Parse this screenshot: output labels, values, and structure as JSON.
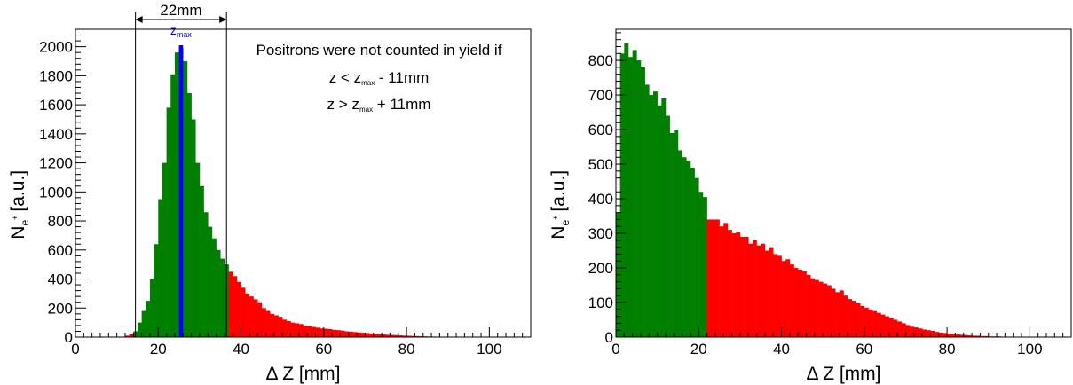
{
  "chart_data": [
    {
      "type": "bar",
      "panel": "left",
      "xlabel": "Δ Z [mm]",
      "ylabel_main": "N",
      "ylabel_sub": "e",
      "ylabel_sup": "+",
      "ylabel_unit": "[a.u.]",
      "xlim": [
        0,
        110
      ],
      "ylim": [
        0,
        2120
      ],
      "xticks": [
        0,
        20,
        40,
        60,
        80,
        100
      ],
      "yticks": [
        0,
        200,
        400,
        600,
        800,
        1000,
        1200,
        1400,
        1600,
        1800,
        2000
      ],
      "bin_width": 1,
      "bin_start": 0,
      "counted_range": [
        14.5,
        36.5
      ],
      "colors": {
        "counted": "#007f00",
        "not_counted": "#ff0000",
        "zmax": "#0000ff"
      },
      "values": [
        0,
        0,
        0,
        0,
        0,
        0,
        0,
        0,
        0,
        0,
        2,
        3,
        10,
        20,
        40,
        100,
        180,
        250,
        400,
        640,
        950,
        1200,
        1580,
        1810,
        1960,
        1990,
        1900,
        1680,
        1500,
        1200,
        1040,
        860,
        760,
        680,
        600,
        540,
        500,
        450,
        420,
        380,
        340,
        300,
        280,
        260,
        240,
        200,
        180,
        160,
        150,
        140,
        120,
        110,
        100,
        95,
        90,
        80,
        75,
        70,
        65,
        60,
        58,
        55,
        50,
        48,
        45,
        40,
        38,
        35,
        32,
        30,
        28,
        25,
        22,
        20,
        18,
        16,
        15,
        14,
        12,
        10,
        9,
        8,
        7,
        6,
        5,
        4,
        4,
        3,
        3,
        2,
        2,
        2,
        1,
        1,
        1,
        1,
        0,
        0,
        0,
        0,
        0,
        0,
        0,
        0,
        0,
        0,
        0,
        0,
        0,
        0
      ],
      "zmax": {
        "x": 25.5,
        "height": 2010,
        "label_main": "z",
        "label_sub": "max"
      },
      "width_arrow": {
        "from": 14.5,
        "to": 36.5,
        "label": "22mm"
      },
      "annotation": {
        "line1": "Positrons were not counted in yield if",
        "line2_pre": "z < z",
        "line2_sub": "max",
        "line2_post": " - 11mm",
        "line3_pre": "z > z",
        "line3_sub": "max",
        "line3_post": " + 11mm"
      }
    },
    {
      "type": "bar",
      "panel": "right",
      "xlabel": "Δ Z [mm]",
      "ylabel_main": "N",
      "ylabel_sub": "e",
      "ylabel_sup": "+",
      "ylabel_unit": "[a.u.]",
      "xlim": [
        0,
        110
      ],
      "ylim": [
        0,
        890
      ],
      "xticks": [
        0,
        20,
        40,
        60,
        80,
        100
      ],
      "yticks": [
        0,
        100,
        200,
        300,
        400,
        500,
        600,
        700,
        800
      ],
      "bin_width": 1,
      "bin_start": 0,
      "counted_range": [
        0,
        22
      ],
      "colors": {
        "counted": "#007f00",
        "not_counted": "#ff0000"
      },
      "values": [
        360,
        820,
        850,
        810,
        830,
        800,
        780,
        730,
        700,
        710,
        670,
        690,
        640,
        590,
        600,
        540,
        520,
        510,
        490,
        460,
        420,
        405,
        340,
        340,
        340,
        320,
        330,
        310,
        300,
        305,
        290,
        290,
        270,
        280,
        265,
        270,
        250,
        260,
        240,
        235,
        220,
        225,
        210,
        200,
        195,
        190,
        180,
        170,
        165,
        160,
        155,
        150,
        140,
        130,
        135,
        120,
        110,
        105,
        100,
        90,
        85,
        80,
        75,
        70,
        65,
        60,
        55,
        50,
        45,
        40,
        35,
        30,
        28,
        25,
        22,
        20,
        18,
        15,
        13,
        12,
        10,
        9,
        8,
        7,
        6,
        5,
        4,
        4,
        3,
        3,
        2,
        2,
        2,
        1,
        1,
        1,
        1,
        0,
        0,
        0,
        0,
        0,
        0,
        0,
        0,
        0,
        0,
        0,
        0,
        0
      ]
    }
  ]
}
